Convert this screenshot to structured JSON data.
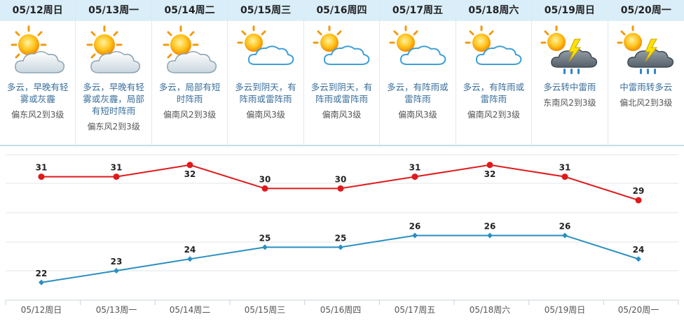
{
  "days": [
    {
      "date": "05/12周日",
      "icon": "sun-cloud-icon",
      "desc": "多云，早晚有轻雾或灰霾",
      "wind": "偏东风2到3级"
    },
    {
      "date": "05/13周一",
      "icon": "sun-cloud-icon",
      "desc": "多云，早晚有轻雾或灰霾，局部有短时阵雨",
      "wind": "偏东风2到3级"
    },
    {
      "date": "05/14周二",
      "icon": "sun-cloud-icon",
      "desc": "多云，局部有短时阵雨",
      "wind": "偏南风2到3级"
    },
    {
      "date": "05/15周三",
      "icon": "sun-cloud-icon",
      "desc": "多云到阴天，有阵雨或雷阵雨",
      "wind": "偏南风3级"
    },
    {
      "date": "05/16周四",
      "icon": "sun-cloud-icon",
      "desc": "多云到阴天，有阵雨或雷阵雨",
      "wind": "偏南风3级"
    },
    {
      "date": "05/17周五",
      "icon": "sun-cloud-icon",
      "desc": "多云，有阵雨或雷阵雨",
      "wind": "偏南风3级"
    },
    {
      "date": "05/18周六",
      "icon": "sun-cloud-icon",
      "desc": "多云，有阵雨或雷阵雨",
      "wind": "偏南风2到3级"
    },
    {
      "date": "05/19周日",
      "icon": "thunderstorm-icon",
      "desc": "多云转中雷雨",
      "wind": "东南风2到3级"
    },
    {
      "date": "05/20周一",
      "icon": "thunderstorm-icon",
      "desc": "中雷雨转多云",
      "wind": "偏北风2到3级"
    }
  ],
  "chart_data": {
    "type": "line",
    "categories": [
      "05/12周日",
      "05/13周一",
      "05/14周二",
      "05/15周三",
      "05/16周四",
      "05/17周五",
      "05/18周六",
      "05/19周日",
      "05/20周一"
    ],
    "series": [
      {
        "values": [
          31,
          31,
          32,
          30,
          30,
          31,
          32,
          31,
          29
        ],
        "color": "#e0191b",
        "marker": "circle"
      },
      {
        "values": [
          22,
          23,
          24,
          25,
          25,
          26,
          26,
          26,
          24
        ],
        "color": "#2a8fc0",
        "marker": "diamond"
      }
    ],
    "title": "",
    "xlabel": "",
    "ylabel": "",
    "ylim": [
      20.5,
      33
    ],
    "grid": true,
    "legend": "none"
  }
}
